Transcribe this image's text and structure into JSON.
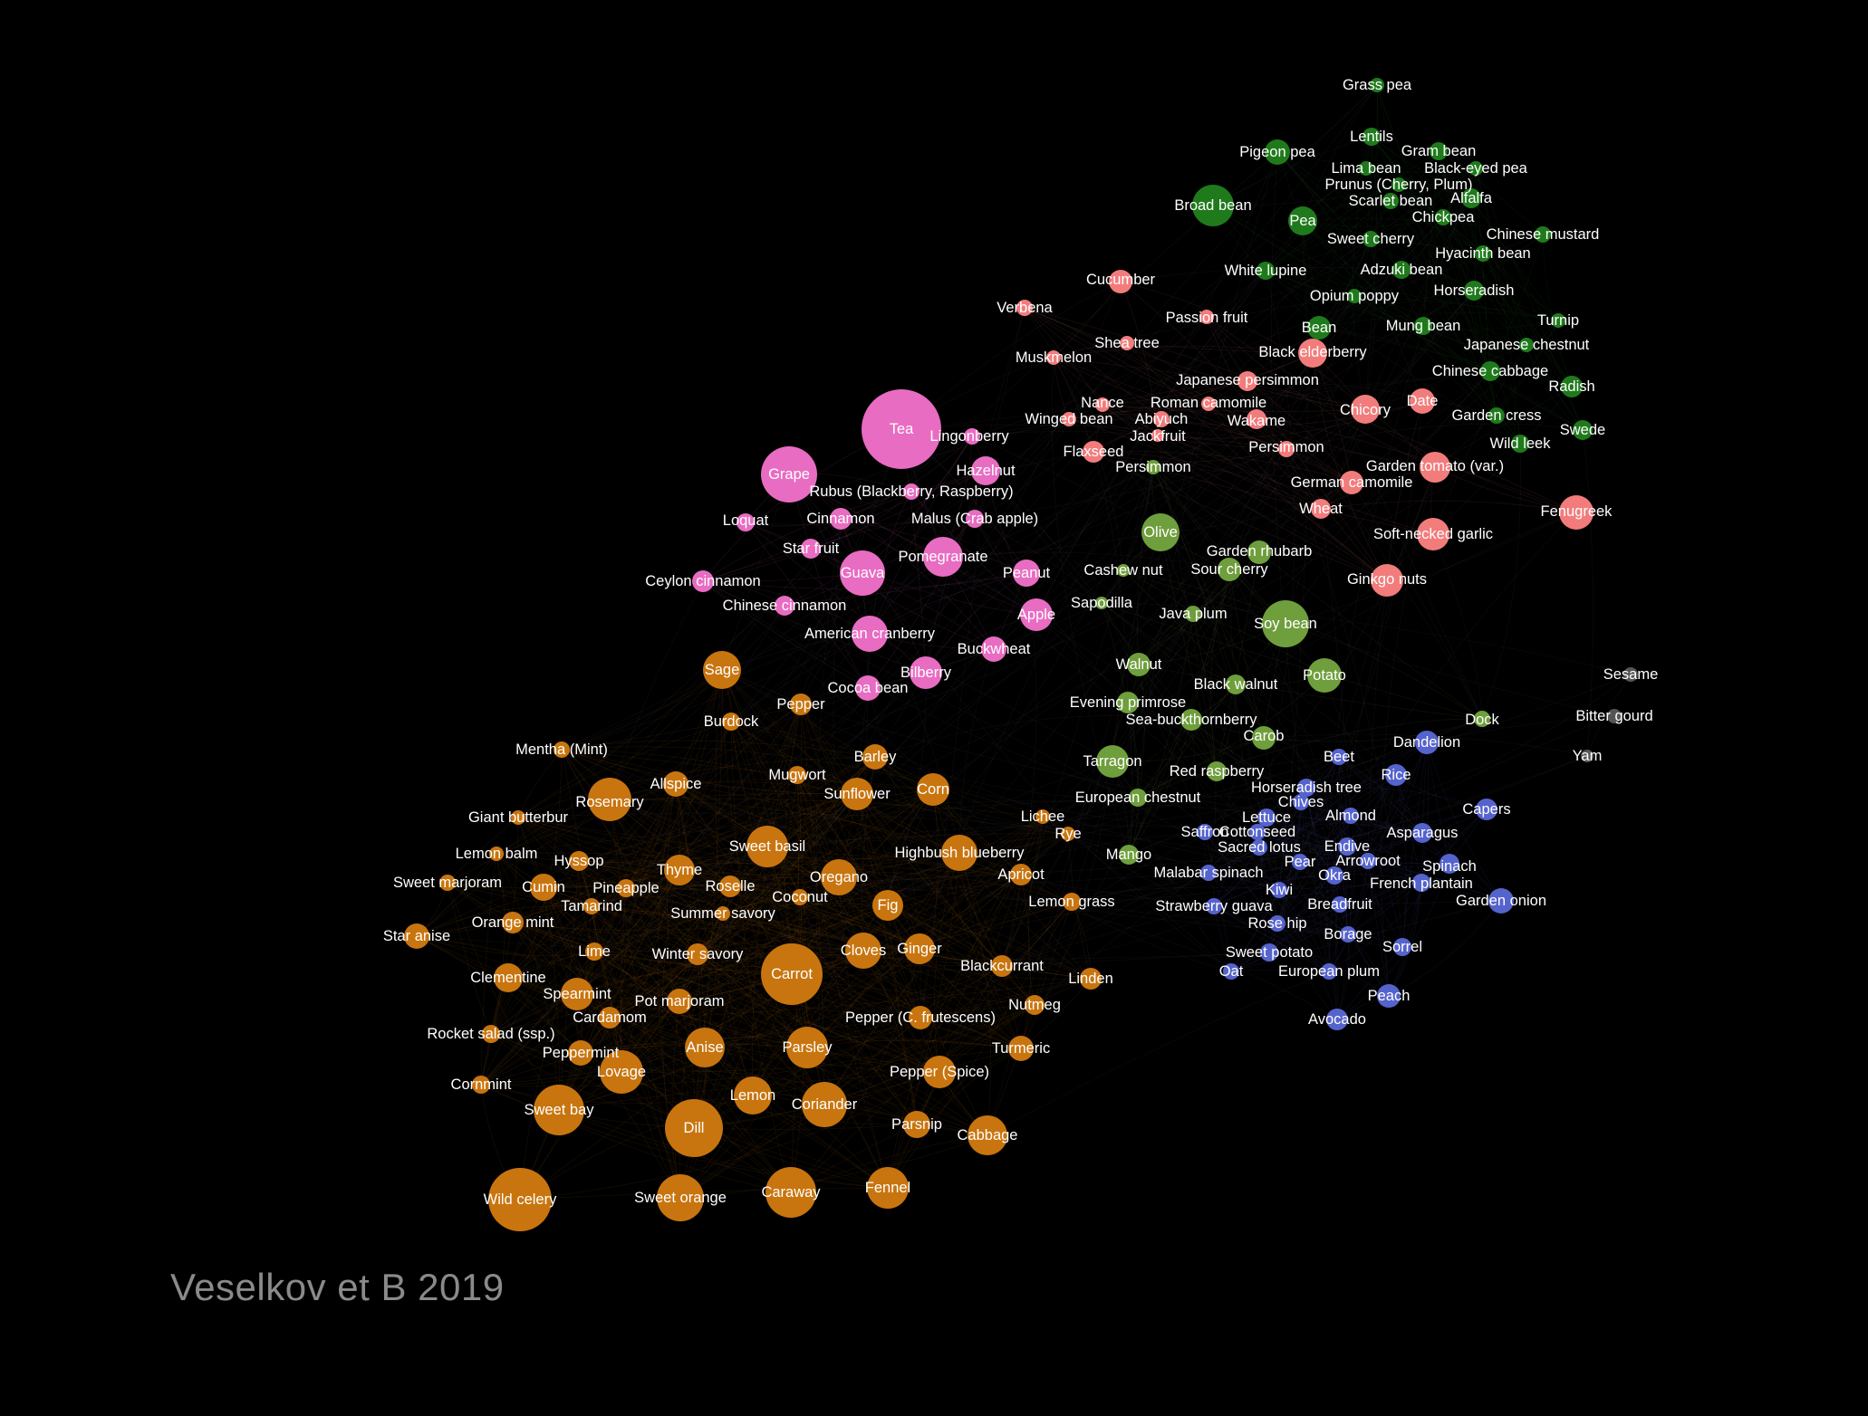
{
  "caption": "Veselkov et B 2019",
  "colors": {
    "background": "#000000",
    "orange": "#c8750f",
    "pink": "#e86cc2",
    "salmon": "#f27c7c",
    "light_green": "#6f9e3c",
    "dark_green": "#1f7a1c",
    "blue": "#5563cc",
    "gray": "#555555",
    "label": "#ffffff",
    "caption": "#8a8a8a"
  },
  "clusters": [
    {
      "name": "orange",
      "color": "#c8750f",
      "nodes": [
        "Sage",
        "Burdock",
        "Pepper",
        "Mentha (Mint)",
        "Barley",
        "Rosemary",
        "Allspice",
        "Mugwort",
        "Sunflower",
        "Corn",
        "Giant butterbur",
        "Sweet basil",
        "Highbush blueberry",
        "Lemon balm",
        "Hyssop",
        "Thyme",
        "Sweet marjoram",
        "Cumin",
        "Pineapple",
        "Roselle",
        "Oregano",
        "Coconut",
        "Apricot",
        "Tamarind",
        "Fig",
        "Summer savory",
        "Star anise",
        "Orange mint",
        "Lime",
        "Winter savory",
        "Cloves",
        "Ginger",
        "Blackcurrant",
        "Linden",
        "Clementine",
        "Spearmint",
        "Carrot",
        "Pot marjoram",
        "Cardamom",
        "Pepper (C. frutescens)",
        "Nutmeg",
        "Rocket salad (ssp.)",
        "Peppermint",
        "Anise",
        "Parsley",
        "Turmeric",
        "Lovage",
        "Pepper (Spice)",
        "Cornmint",
        "Sweet bay",
        "Lemon",
        "Coriander",
        "Dill",
        "Parsnip",
        "Cabbage",
        "Wild celery",
        "Sweet orange",
        "Caraway",
        "Fennel",
        "Lemon grass",
        "Rye",
        "Lichee"
      ]
    },
    {
      "name": "pink",
      "color": "#e86cc2",
      "nodes": [
        "Tea",
        "Lingonberry",
        "Grape",
        "Hazelnut",
        "Rubus (Blackberry, Raspberry)",
        "Loquat",
        "Cinnamon",
        "Malus (Crab apple)",
        "Star fruit",
        "Pomegranate",
        "Guava",
        "Peanut",
        "Ceylon cinnamon",
        "Chinese cinnamon",
        "Apple",
        "American cranberry",
        "Buckwheat",
        "Bilberry",
        "Cocoa bean"
      ]
    },
    {
      "name": "salmon",
      "color": "#f27c7c",
      "nodes": [
        "Cucumber",
        "Verbena",
        "Passion fruit",
        "Shea tree",
        "Muskmelon",
        "Black elderberry",
        "Japanese persimmon",
        "Nance",
        "Roman camomile",
        "Date",
        "Winged bean",
        "Abiyuch",
        "Wakame",
        "Chicory",
        "Jackfruit",
        "Flaxseed",
        "Persimmon",
        "Garden tomato (var.)",
        "German camomile",
        "Wheat",
        "Fenugreek",
        "Soft-necked garlic",
        "Ginkgo nuts"
      ]
    },
    {
      "name": "light-green",
      "color": "#6f9e3c",
      "nodes": [
        "Olive",
        "Garden rhubarb",
        "Cashew nut",
        "Sour cherry",
        "Sapodilla",
        "Java plum",
        "Soy bean",
        "Walnut",
        "Potato",
        "Black walnut",
        "Evening primrose",
        "Sea-buckthornberry",
        "Dock",
        "Carob",
        "Tarragon",
        "Red raspberry",
        "European chestnut",
        "Mango",
        "Persimmon"
      ]
    },
    {
      "name": "dark-green",
      "color": "#1f7a1c",
      "nodes": [
        "Grass pea",
        "Lentils",
        "Pigeon pea",
        "Gram bean",
        "Lima bean",
        "Black-eyed pea",
        "Prunus (Cherry, Plum)",
        "Broad bean",
        "Alfalfa",
        "Scarlet bean",
        "Pea",
        "Chickpea",
        "Chinese mustard",
        "Sweet cherry",
        "Hyacinth bean",
        "White lupine",
        "Adzuki bean",
        "Opium poppy",
        "Horseradish",
        "Bean",
        "Mung bean",
        "Turnip",
        "Japanese chestnut",
        "Chinese cabbage",
        "Radish",
        "Garden cress",
        "Swede",
        "Wild leek"
      ]
    },
    {
      "name": "blue",
      "color": "#5563cc",
      "nodes": [
        "Dandelion",
        "Beet",
        "Rice",
        "Horseradish tree",
        "Chives",
        "Capers",
        "Lettuce",
        "Almond",
        "Saffron",
        "Cottonseed",
        "Asparagus",
        "Sacred lotus",
        "Endive",
        "Pear",
        "Arrowroot",
        "Spinach",
        "Malabar spinach",
        "Okra",
        "French plantain",
        "Kiwi",
        "Strawberry guava",
        "Breadfruit",
        "Garden onion",
        "Rose hip",
        "Borage",
        "Sorrel",
        "Sweet potato",
        "Oat",
        "European plum",
        "Peach",
        "Avocado"
      ]
    },
    {
      "name": "gray",
      "color": "#555555",
      "nodes": [
        "Sesame",
        "Bitter gourd",
        "Yam"
      ]
    }
  ]
}
